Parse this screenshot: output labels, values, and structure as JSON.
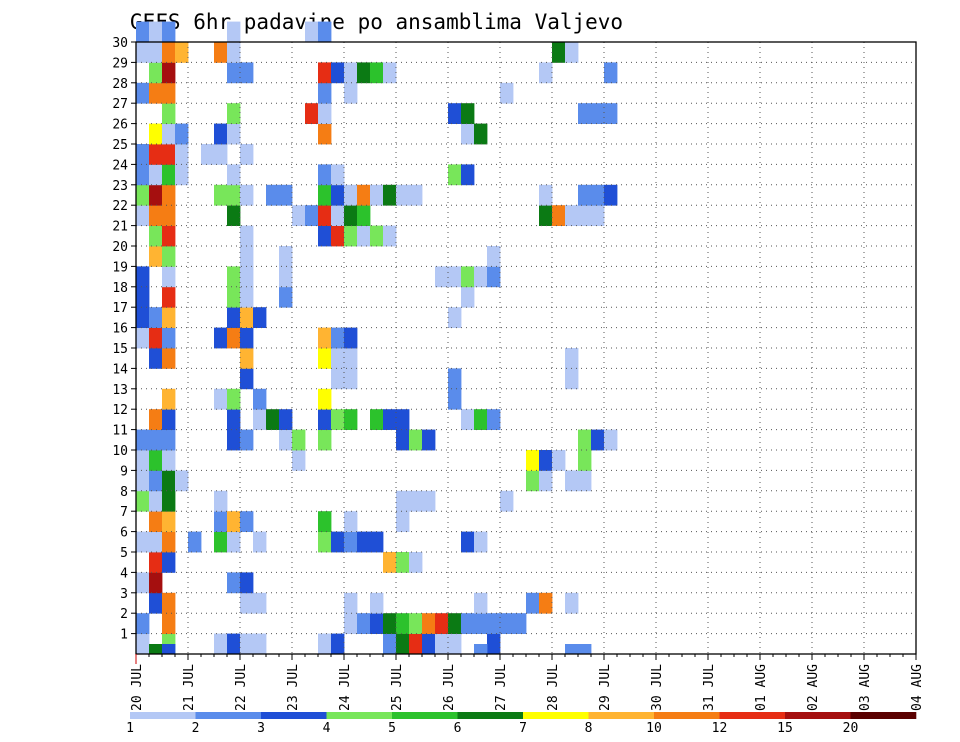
{
  "chart_data": {
    "type": "heatmap",
    "title": "GEFS 6hr padavine po ansamblima Valjevo",
    "x_tick_labels": [
      "20 JUL",
      "21 JUL",
      "22 JUL",
      "23 JUL",
      "24 JUL",
      "25 JUL",
      "26 JUL",
      "27 JUL",
      "28 JUL",
      "29 JUL",
      "30 JUL",
      "31 JUL",
      "01 AUG",
      "02 AUG",
      "03 AUG",
      "04 AUG"
    ],
    "x_unit": "6h steps from 20 JUL 00 UTC",
    "y_tick_labels": [
      "1",
      "2",
      "3",
      "4",
      "5",
      "6",
      "7",
      "8",
      "9",
      "10",
      "11",
      "12",
      "13",
      "14",
      "15",
      "16",
      "17",
      "18",
      "19",
      "20",
      "21",
      "22",
      "23",
      "24",
      "25",
      "26",
      "27",
      "28",
      "29",
      "30"
    ],
    "ylim": [
      0,
      30
    ],
    "grid": true,
    "colorbar": {
      "labels": [
        "1",
        "2",
        "3",
        "4",
        "5",
        "6",
        "7",
        "8",
        "10",
        "12",
        "15",
        "20"
      ],
      "colors": [
        "#b4c8f5",
        "#5a8ceb",
        "#1f4fd6",
        "#78e65a",
        "#2cc22c",
        "#0b7a14",
        "#ffff00",
        "#ffb432",
        "#f57d14",
        "#e62d14",
        "#a50f0f",
        "#5a0000"
      ]
    },
    "cells": [
      [
        0,
        0,
        1
      ],
      [
        2,
        0,
        4
      ],
      [
        6,
        0,
        1
      ],
      [
        7,
        0,
        3
      ],
      [
        8,
        0,
        1
      ],
      [
        9,
        0,
        1
      ],
      [
        14,
        0,
        1
      ],
      [
        15,
        0,
        3
      ],
      [
        19,
        0,
        2
      ],
      [
        20,
        0,
        6
      ],
      [
        21,
        0,
        10
      ],
      [
        22,
        0,
        3
      ],
      [
        23,
        0,
        1
      ],
      [
        24,
        0,
        1
      ],
      [
        27,
        0,
        3
      ],
      [
        0,
        1,
        2
      ],
      [
        2,
        1,
        9
      ],
      [
        16,
        1,
        1
      ],
      [
        17,
        1,
        2
      ],
      [
        18,
        1,
        3
      ],
      [
        19,
        1,
        6
      ],
      [
        20,
        1,
        5
      ],
      [
        21,
        1,
        4
      ],
      [
        22,
        1,
        9
      ],
      [
        23,
        1,
        10
      ],
      [
        24,
        1,
        6
      ],
      [
        25,
        1,
        2
      ],
      [
        26,
        1,
        2
      ],
      [
        27,
        1,
        2
      ],
      [
        28,
        1,
        2
      ],
      [
        29,
        1,
        2
      ],
      [
        1,
        2,
        3
      ],
      [
        2,
        2,
        9
      ],
      [
        8,
        2,
        1
      ],
      [
        9,
        2,
        1
      ],
      [
        16,
        2,
        1
      ],
      [
        18,
        2,
        1
      ],
      [
        26,
        2,
        1
      ],
      [
        30,
        2,
        2
      ],
      [
        31,
        2,
        9
      ],
      [
        33,
        2,
        1
      ],
      [
        0,
        3,
        1
      ],
      [
        1,
        3,
        11
      ],
      [
        7,
        3,
        2
      ],
      [
        8,
        3,
        3
      ],
      [
        1,
        4,
        10
      ],
      [
        2,
        4,
        3
      ],
      [
        19,
        4,
        8
      ],
      [
        20,
        4,
        4
      ],
      [
        21,
        4,
        1
      ],
      [
        0,
        5,
        1
      ],
      [
        1,
        5,
        1
      ],
      [
        2,
        5,
        9
      ],
      [
        4,
        5,
        2
      ],
      [
        6,
        5,
        5
      ],
      [
        7,
        5,
        1
      ],
      [
        9,
        5,
        1
      ],
      [
        14,
        5,
        4
      ],
      [
        15,
        5,
        3
      ],
      [
        16,
        5,
        2
      ],
      [
        17,
        5,
        3
      ],
      [
        18,
        5,
        3
      ],
      [
        25,
        5,
        3
      ],
      [
        26,
        5,
        1
      ],
      [
        1,
        6,
        9
      ],
      [
        2,
        6,
        8
      ],
      [
        6,
        6,
        2
      ],
      [
        7,
        6,
        8
      ],
      [
        8,
        6,
        2
      ],
      [
        14,
        6,
        5
      ],
      [
        16,
        6,
        1
      ],
      [
        20,
        6,
        1
      ],
      [
        0,
        7,
        4
      ],
      [
        1,
        7,
        1
      ],
      [
        2,
        7,
        6
      ],
      [
        6,
        7,
        1
      ],
      [
        20,
        7,
        1
      ],
      [
        21,
        7,
        1
      ],
      [
        22,
        7,
        1
      ],
      [
        28,
        7,
        1
      ],
      [
        0,
        8,
        1
      ],
      [
        1,
        8,
        2
      ],
      [
        2,
        8,
        6
      ],
      [
        3,
        8,
        1
      ],
      [
        30,
        8,
        4
      ],
      [
        31,
        8,
        1
      ],
      [
        33,
        8,
        1
      ],
      [
        34,
        8,
        1
      ],
      [
        0,
        9,
        1
      ],
      [
        1,
        9,
        5
      ],
      [
        2,
        9,
        1
      ],
      [
        12,
        9,
        1
      ],
      [
        30,
        9,
        7
      ],
      [
        31,
        9,
        3
      ],
      [
        32,
        9,
        1
      ],
      [
        34,
        9,
        4
      ],
      [
        0,
        10,
        2
      ],
      [
        1,
        10,
        2
      ],
      [
        2,
        10,
        2
      ],
      [
        7,
        10,
        3
      ],
      [
        8,
        10,
        2
      ],
      [
        11,
        10,
        1
      ],
      [
        12,
        10,
        4
      ],
      [
        14,
        10,
        4
      ],
      [
        20,
        10,
        3
      ],
      [
        21,
        10,
        4
      ],
      [
        22,
        10,
        3
      ],
      [
        34,
        10,
        4
      ],
      [
        35,
        10,
        3
      ],
      [
        36,
        10,
        1
      ],
      [
        1,
        11,
        9
      ],
      [
        2,
        11,
        3
      ],
      [
        7,
        11,
        3
      ],
      [
        9,
        11,
        1
      ],
      [
        10,
        11,
        6
      ],
      [
        11,
        11,
        3
      ],
      [
        14,
        11,
        3
      ],
      [
        15,
        11,
        4
      ],
      [
        16,
        11,
        5
      ],
      [
        18,
        11,
        5
      ],
      [
        19,
        11,
        3
      ],
      [
        20,
        11,
        3
      ],
      [
        25,
        11,
        1
      ],
      [
        26,
        11,
        5
      ],
      [
        27,
        11,
        2
      ],
      [
        2,
        12,
        8
      ],
      [
        6,
        12,
        1
      ],
      [
        7,
        12,
        4
      ],
      [
        9,
        12,
        2
      ],
      [
        14,
        12,
        7
      ],
      [
        24,
        12,
        2
      ],
      [
        8,
        13,
        3
      ],
      [
        15,
        13,
        1
      ],
      [
        16,
        13,
        1
      ],
      [
        24,
        13,
        2
      ],
      [
        33,
        13,
        1
      ],
      [
        1,
        14,
        3
      ],
      [
        2,
        14,
        9
      ],
      [
        8,
        14,
        8
      ],
      [
        14,
        14,
        7
      ],
      [
        15,
        14,
        1
      ],
      [
        16,
        14,
        1
      ],
      [
        33,
        14,
        1
      ],
      [
        0,
        15,
        1
      ],
      [
        1,
        15,
        10
      ],
      [
        2,
        15,
        2
      ],
      [
        6,
        15,
        3
      ],
      [
        7,
        15,
        9
      ],
      [
        8,
        15,
        3
      ],
      [
        14,
        15,
        8
      ],
      [
        15,
        15,
        2
      ],
      [
        16,
        15,
        3
      ],
      [
        0,
        16,
        3
      ],
      [
        1,
        16,
        2
      ],
      [
        2,
        16,
        8
      ],
      [
        7,
        16,
        3
      ],
      [
        8,
        16,
        8
      ],
      [
        9,
        16,
        3
      ],
      [
        24,
        16,
        1
      ],
      [
        0,
        17,
        3
      ],
      [
        2,
        17,
        10
      ],
      [
        7,
        17,
        4
      ],
      [
        8,
        17,
        1
      ],
      [
        11,
        17,
        2
      ],
      [
        25,
        17,
        1
      ],
      [
        0,
        18,
        3
      ],
      [
        2,
        18,
        1
      ],
      [
        7,
        18,
        4
      ],
      [
        8,
        18,
        1
      ],
      [
        11,
        18,
        1
      ],
      [
        23,
        18,
        1
      ],
      [
        24,
        18,
        1
      ],
      [
        25,
        18,
        4
      ],
      [
        26,
        18,
        1
      ],
      [
        27,
        18,
        2
      ],
      [
        1,
        19,
        8
      ],
      [
        2,
        19,
        4
      ],
      [
        8,
        19,
        1
      ],
      [
        11,
        19,
        1
      ],
      [
        27,
        19,
        1
      ],
      [
        1,
        20,
        4
      ],
      [
        2,
        20,
        10
      ],
      [
        8,
        20,
        1
      ],
      [
        14,
        20,
        3
      ],
      [
        15,
        20,
        10
      ],
      [
        16,
        20,
        4
      ],
      [
        17,
        20,
        1
      ],
      [
        18,
        20,
        4
      ],
      [
        19,
        20,
        1
      ],
      [
        0,
        21,
        1
      ],
      [
        1,
        21,
        9
      ],
      [
        2,
        21,
        9
      ],
      [
        7,
        21,
        6
      ],
      [
        12,
        21,
        1
      ],
      [
        13,
        21,
        2
      ],
      [
        14,
        21,
        10
      ],
      [
        15,
        21,
        1
      ],
      [
        16,
        21,
        6
      ],
      [
        17,
        21,
        5
      ],
      [
        31,
        21,
        6
      ],
      [
        32,
        21,
        9
      ],
      [
        33,
        21,
        1
      ],
      [
        34,
        21,
        1
      ],
      [
        35,
        21,
        1
      ],
      [
        0,
        22,
        4
      ],
      [
        1,
        22,
        11
      ],
      [
        2,
        22,
        9
      ],
      [
        6,
        22,
        4
      ],
      [
        7,
        22,
        4
      ],
      [
        8,
        22,
        1
      ],
      [
        10,
        22,
        2
      ],
      [
        11,
        22,
        2
      ],
      [
        14,
        22,
        5
      ],
      [
        15,
        22,
        3
      ],
      [
        16,
        22,
        1
      ],
      [
        17,
        22,
        9
      ],
      [
        18,
        22,
        1
      ],
      [
        19,
        22,
        6
      ],
      [
        20,
        22,
        1
      ],
      [
        21,
        22,
        1
      ],
      [
        31,
        22,
        1
      ],
      [
        34,
        22,
        2
      ],
      [
        35,
        22,
        2
      ],
      [
        36,
        22,
        3
      ],
      [
        0,
        23,
        2
      ],
      [
        1,
        23,
        1
      ],
      [
        2,
        23,
        5
      ],
      [
        3,
        23,
        1
      ],
      [
        7,
        23,
        1
      ],
      [
        14,
        23,
        2
      ],
      [
        15,
        23,
        1
      ],
      [
        24,
        23,
        4
      ],
      [
        25,
        23,
        3
      ],
      [
        0,
        24,
        2
      ],
      [
        1,
        24,
        10
      ],
      [
        2,
        24,
        10
      ],
      [
        3,
        24,
        1
      ],
      [
        5,
        24,
        1
      ],
      [
        6,
        24,
        1
      ],
      [
        8,
        24,
        1
      ],
      [
        1,
        25,
        7
      ],
      [
        2,
        25,
        1
      ],
      [
        3,
        25,
        2
      ],
      [
        6,
        25,
        3
      ],
      [
        7,
        25,
        1
      ],
      [
        14,
        25,
        9
      ],
      [
        25,
        25,
        1
      ],
      [
        26,
        25,
        6
      ],
      [
        2,
        26,
        4
      ],
      [
        7,
        26,
        4
      ],
      [
        13,
        26,
        10
      ],
      [
        14,
        26,
        1
      ],
      [
        24,
        26,
        3
      ],
      [
        25,
        26,
        6
      ],
      [
        34,
        26,
        2
      ],
      [
        35,
        26,
        2
      ],
      [
        36,
        26,
        2
      ],
      [
        0,
        27,
        2
      ],
      [
        1,
        27,
        9
      ],
      [
        2,
        27,
        9
      ],
      [
        14,
        27,
        2
      ],
      [
        16,
        27,
        1
      ],
      [
        28,
        27,
        1
      ],
      [
        1,
        28,
        4
      ],
      [
        2,
        28,
        11
      ],
      [
        7,
        28,
        2
      ],
      [
        8,
        28,
        2
      ],
      [
        14,
        28,
        10
      ],
      [
        15,
        28,
        3
      ],
      [
        16,
        28,
        1
      ],
      [
        17,
        28,
        6
      ],
      [
        18,
        28,
        5
      ],
      [
        19,
        28,
        1
      ],
      [
        31,
        28,
        1
      ],
      [
        36,
        28,
        2
      ],
      [
        0,
        29,
        1
      ],
      [
        1,
        29,
        1
      ],
      [
        2,
        29,
        9
      ],
      [
        3,
        29,
        8
      ],
      [
        6,
        29,
        9
      ],
      [
        7,
        29,
        1
      ],
      [
        32,
        29,
        6
      ],
      [
        33,
        29,
        1
      ],
      [
        0,
        30,
        2
      ],
      [
        1,
        30,
        1
      ],
      [
        2,
        30,
        2
      ],
      [
        7,
        30,
        1
      ],
      [
        13,
        30,
        1
      ],
      [
        14,
        30,
        2
      ]
    ],
    "axis_row_cells": [
      [
        1,
        6
      ],
      [
        2,
        3
      ],
      [
        26,
        2
      ],
      [
        33,
        2
      ],
      [
        34,
        2
      ]
    ]
  }
}
